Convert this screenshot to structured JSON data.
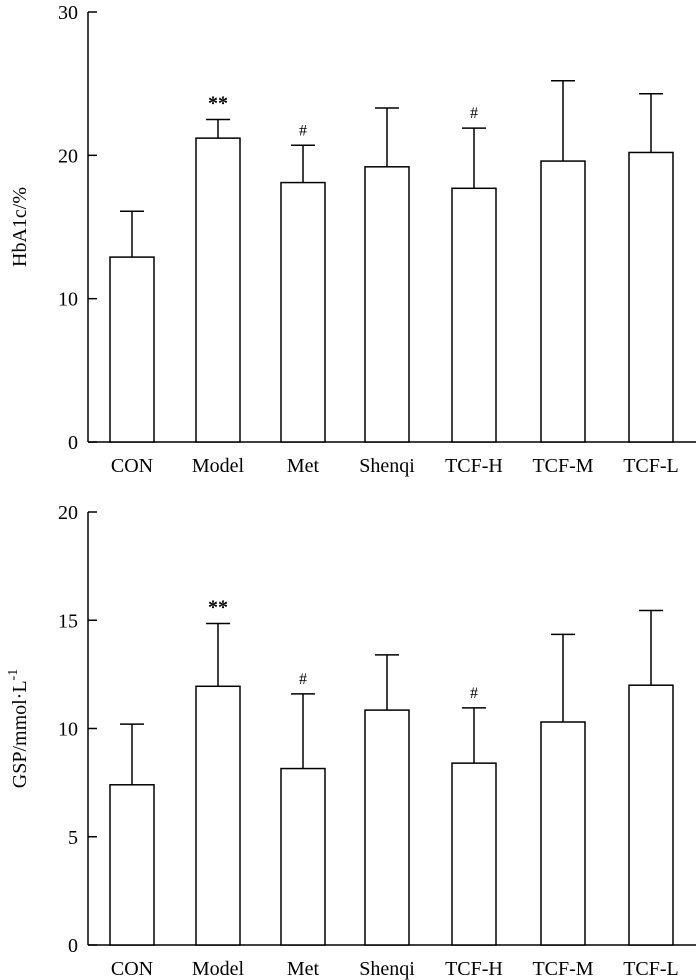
{
  "chart_data": [
    {
      "type": "bar",
      "title": "",
      "xlabel": "",
      "ylabel": "HbA1c/%",
      "ylim": [
        0,
        30
      ],
      "yticks": [
        0,
        10,
        20,
        30
      ],
      "categories": [
        "CON",
        "Model",
        "Met",
        "Shenqi",
        "TCF-H",
        "TCF-M",
        "TCF-L"
      ],
      "values": [
        12.9,
        21.2,
        18.1,
        19.2,
        17.7,
        19.6,
        20.2
      ],
      "errors": [
        3.2,
        1.3,
        2.6,
        4.1,
        4.2,
        5.6,
        4.1
      ],
      "annotations": [
        "",
        "**",
        "#",
        "",
        "#",
        "",
        ""
      ]
    },
    {
      "type": "bar",
      "title": "",
      "xlabel": "",
      "ylabel": "GSP/mmol·L",
      "ylabel_superscript": "-1",
      "ylim": [
        0,
        20
      ],
      "yticks": [
        0,
        5,
        10,
        15,
        20
      ],
      "categories": [
        "CON",
        "Model",
        "Met",
        "Shenqi",
        "TCF-H",
        "TCF-M",
        "TCF-L"
      ],
      "values": [
        7.4,
        11.95,
        8.15,
        10.85,
        8.4,
        10.3,
        12.0
      ],
      "errors": [
        2.8,
        2.9,
        3.45,
        2.55,
        2.55,
        4.05,
        3.45
      ],
      "annotations": [
        "",
        "**",
        "#",
        "",
        "#",
        "",
        ""
      ]
    }
  ]
}
